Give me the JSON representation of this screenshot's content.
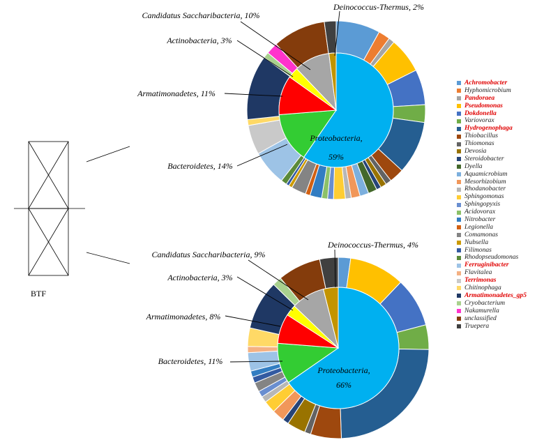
{
  "reactor_label": "BTF",
  "colors": {
    "Achromobacter": "#5b9bd5",
    "Hyphomicrobium": "#ed7d31",
    "Pandoraea": "#a5a5a5",
    "Pseudomonas": "#ffc000",
    "Dokdonella": "#4472c4",
    "Variovorax": "#70ad47",
    "Hydrogenophaga": "#255e91",
    "Thiobacillus": "#9e480e",
    "Thiomonas": "#636363",
    "Devosia": "#997300",
    "Steroidobacter": "#264478",
    "Dyella": "#43682b",
    "Aquamicrobium": "#7cafdd",
    "Mesorhizobium": "#f1975a",
    "Rhodanobacter": "#b7b7b7",
    "Sphingomonas": "#ffcd33",
    "Sphingopyxis": "#698ed0",
    "Acidovorax": "#8cc168",
    "Nitrobacter": "#327dc2",
    "Legionella": "#d26012",
    "Comamonas": "#848484",
    "Nubsella": "#cc9a00",
    "Filimonas": "#335aa1",
    "Rhodopseudomonas": "#5a8a39",
    "Ferruginibacter": "#9dc3e6",
    "Flavitalea": "#f4b183",
    "Terrimonas": "#c9c9c9",
    "Chitinophaga": "#ffd966",
    "Armatimonadetes_gp5": "#1f3864",
    "Cryobacterium": "#a9d18e",
    "Nakamurella": "#ff33cc",
    "unclassified": "#843c0c",
    "Truepera": "#404040",
    "Proteobacteria": "#00b0f0",
    "Bacteroidetes": "#33cc33",
    "Armatimonadetes": "#ff0000",
    "Actinobacteria": "#ffff00",
    "Candidatus Saccharibacteria": "#a6a6a6",
    "Deinococcus-Thermus": "#c39400"
  },
  "chart_data": {
    "type": "pie",
    "legend_position": "right",
    "legend": [
      {
        "name": "Achromobacter",
        "highlight": true
      },
      {
        "name": "Hyphomicrobium",
        "highlight": false
      },
      {
        "name": "Pandoraea",
        "highlight": true
      },
      {
        "name": "Pseudomonas",
        "highlight": true
      },
      {
        "name": "Dokdonella",
        "highlight": true
      },
      {
        "name": "Variovorax",
        "highlight": false
      },
      {
        "name": "Hydrogenophaga",
        "highlight": true
      },
      {
        "name": "Thiobacillus",
        "highlight": false
      },
      {
        "name": "Thiomonas",
        "highlight": false
      },
      {
        "name": "Devosia",
        "highlight": false
      },
      {
        "name": "Steroidobacter",
        "highlight": false
      },
      {
        "name": "Dyella",
        "highlight": false
      },
      {
        "name": "Aquamicrobium",
        "highlight": false
      },
      {
        "name": "Mesorhizobium",
        "highlight": false
      },
      {
        "name": "Rhodanobacter",
        "highlight": false
      },
      {
        "name": "Sphingomonas",
        "highlight": false
      },
      {
        "name": "Sphingopyxis",
        "highlight": false
      },
      {
        "name": "Acidovorax",
        "highlight": false
      },
      {
        "name": "Nitrobacter",
        "highlight": false
      },
      {
        "name": "Legionella",
        "highlight": false
      },
      {
        "name": "Comamonas",
        "highlight": false
      },
      {
        "name": "Nubsella",
        "highlight": false
      },
      {
        "name": "Filimonas",
        "highlight": false
      },
      {
        "name": "Rhodopseudomonas",
        "highlight": false
      },
      {
        "name": "Ferruginibacter",
        "highlight": true
      },
      {
        "name": "Flavitalea",
        "highlight": false
      },
      {
        "name": "Terrimonas",
        "highlight": true
      },
      {
        "name": "Chitinophaga",
        "highlight": false
      },
      {
        "name": "Armatimonadetes_gp5",
        "highlight": true
      },
      {
        "name": "Cryobacterium",
        "highlight": false
      },
      {
        "name": "Nakamurella",
        "highlight": false
      },
      {
        "name": "unclassified",
        "highlight": false
      },
      {
        "name": "Truepera",
        "highlight": false
      }
    ],
    "charts": [
      {
        "inner": [
          {
            "name": "Proteobacteria",
            "value": 59,
            "label": "Proteobacteria,",
            "value_label": "59%"
          },
          {
            "name": "Bacteroidetes",
            "value": 14,
            "label": "Bacteroidetes, 14%"
          },
          {
            "name": "Armatimonadetes",
            "value": 11,
            "label": "Armatimonadetes, 11%"
          },
          {
            "name": "Actinobacteria",
            "value": 3,
            "label": "Actinobacteria, 3%"
          },
          {
            "name": "Candidatus Saccharibacteria",
            "value": 10,
            "label": "Candidatus Saccharibacteria, 10%"
          },
          {
            "name": "Deinococcus-Thermus",
            "value": 2,
            "label": "Deinococcus-Thermus, 2%"
          }
        ],
        "outer": [
          {
            "name": "Achromobacter",
            "value": 7.5
          },
          {
            "name": "Hyphomicrobium",
            "value": 2
          },
          {
            "name": "Pandoraea",
            "value": 1
          },
          {
            "name": "Pseudomonas",
            "value": 6
          },
          {
            "name": "Dokdonella",
            "value": 6
          },
          {
            "name": "Variovorax",
            "value": 3
          },
          {
            "name": "Hydrogenophaga",
            "value": 9
          },
          {
            "name": "Thiobacillus",
            "value": 2.5
          },
          {
            "name": "Thiomonas",
            "value": 1
          },
          {
            "name": "Devosia",
            "value": 1
          },
          {
            "name": "Steroidobacter",
            "value": 0.8
          },
          {
            "name": "Dyella",
            "value": 1.5
          },
          {
            "name": "Aquamicrobium",
            "value": 1.5
          },
          {
            "name": "Mesorhizobium",
            "value": 1.5
          },
          {
            "name": "Rhodanobacter",
            "value": 1
          },
          {
            "name": "Sphingomonas",
            "value": 2
          },
          {
            "name": "Sphingopyxis",
            "value": 1
          },
          {
            "name": "Acidovorax",
            "value": 1
          },
          {
            "name": "Nitrobacter",
            "value": 2
          },
          {
            "name": "Legionella",
            "value": 0.8
          },
          {
            "name": "Comamonas",
            "value": 2.5
          },
          {
            "name": "Nubsella",
            "value": 0.6
          },
          {
            "name": "Filimonas",
            "value": 0.5
          },
          {
            "name": "Rhodopseudomonas",
            "value": 1
          },
          {
            "name": "Ferruginibacter",
            "value": 6
          },
          {
            "name": "Terrimonas",
            "value": 5
          },
          {
            "name": "Chitinophaga",
            "value": 1
          },
          {
            "name": "Armatimonadetes_gp5",
            "value": 11
          },
          {
            "name": "Cryobacterium",
            "value": 1
          },
          {
            "name": "Nakamurella",
            "value": 2
          },
          {
            "name": "unclassified",
            "value": 9
          },
          {
            "name": "Truepera",
            "value": 2
          }
        ]
      },
      {
        "inner": [
          {
            "name": "Proteobacteria",
            "value": 66,
            "label": "Proteobacteria,",
            "value_label": "66%"
          },
          {
            "name": "Bacteroidetes",
            "value": 11,
            "label": "Bacteroidetes, 11%"
          },
          {
            "name": "Armatimonadetes",
            "value": 8,
            "label": "Armatimonadetes, 8%"
          },
          {
            "name": "Actinobacteria",
            "value": 3,
            "label": "Actinobacteria, 3%"
          },
          {
            "name": "Candidatus Saccharibacteria",
            "value": 9,
            "label": "Candidatus Saccharibacteria, 9%"
          },
          {
            "name": "Deinococcus-Thermus",
            "value": 4,
            "label": "Deinococcus-Thermus, 4%"
          }
        ],
        "outer": [
          {
            "name": "Achromobacter",
            "value": 2
          },
          {
            "name": "Pseudomonas",
            "value": 9
          },
          {
            "name": "Dokdonella",
            "value": 8
          },
          {
            "name": "Variovorax",
            "value": 4
          },
          {
            "name": "Hydrogenophaga",
            "value": 22
          },
          {
            "name": "Thiobacillus",
            "value": 5
          },
          {
            "name": "Thiomonas",
            "value": 1
          },
          {
            "name": "Devosia",
            "value": 3
          },
          {
            "name": "Steroidobacter",
            "value": 1
          },
          {
            "name": "Mesorhizobium",
            "value": 2
          },
          {
            "name": "Sphingomonas",
            "value": 2
          },
          {
            "name": "Rhodanobacter",
            "value": 1
          },
          {
            "name": "Sphingopyxis",
            "value": 1
          },
          {
            "name": "Comamonas",
            "value": 1.5
          },
          {
            "name": "Filimonas",
            "value": 1
          },
          {
            "name": "Nitrobacter",
            "value": 1
          },
          {
            "name": "Ferruginibacter",
            "value": 3
          },
          {
            "name": "Flavitalea",
            "value": 1
          },
          {
            "name": "Chitinophaga",
            "value": 3
          },
          {
            "name": "Armatimonadetes_gp5",
            "value": 8
          },
          {
            "name": "Cryobacterium",
            "value": 1.5
          },
          {
            "name": "unclassified",
            "value": 7
          },
          {
            "name": "Truepera",
            "value": 3
          }
        ]
      }
    ]
  }
}
